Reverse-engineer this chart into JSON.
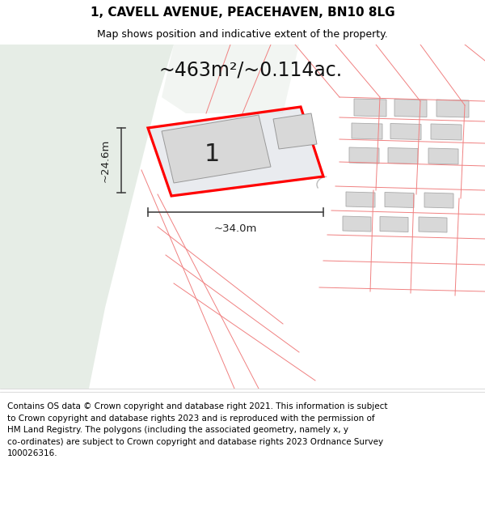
{
  "title": "1, CAVELL AVENUE, PEACEHAVEN, BN10 8LG",
  "subtitle": "Map shows position and indicative extent of the property.",
  "area_label": "~463m²/~0.114ac.",
  "width_label": "~34.0m",
  "height_label": "~24.6m",
  "number_label": "1",
  "footer": "Contains OS data © Crown copyright and database right 2021. This information is subject\nto Crown copyright and database rights 2023 and is reproduced with the permission of\nHM Land Registry. The polygons (including the associated geometry, namely x, y\nco-ordinates) are subject to Crown copyright and database rights 2023 Ordnance Survey\n100026316.",
  "map_bg": "#edf2ec",
  "property_fill": [
    0.83,
    0.85,
    0.88,
    0.5
  ],
  "property_edge": "#ff0000",
  "neighbor_color": "#f08080",
  "building_color": "#d8d8d8",
  "building_edge": "#aaaaaa",
  "dim_color": "#444444",
  "title_fontsize": 11,
  "subtitle_fontsize": 9,
  "area_fontsize": 17,
  "number_fontsize": 22,
  "dim_fontsize": 9.5,
  "footer_fontsize": 7.5
}
